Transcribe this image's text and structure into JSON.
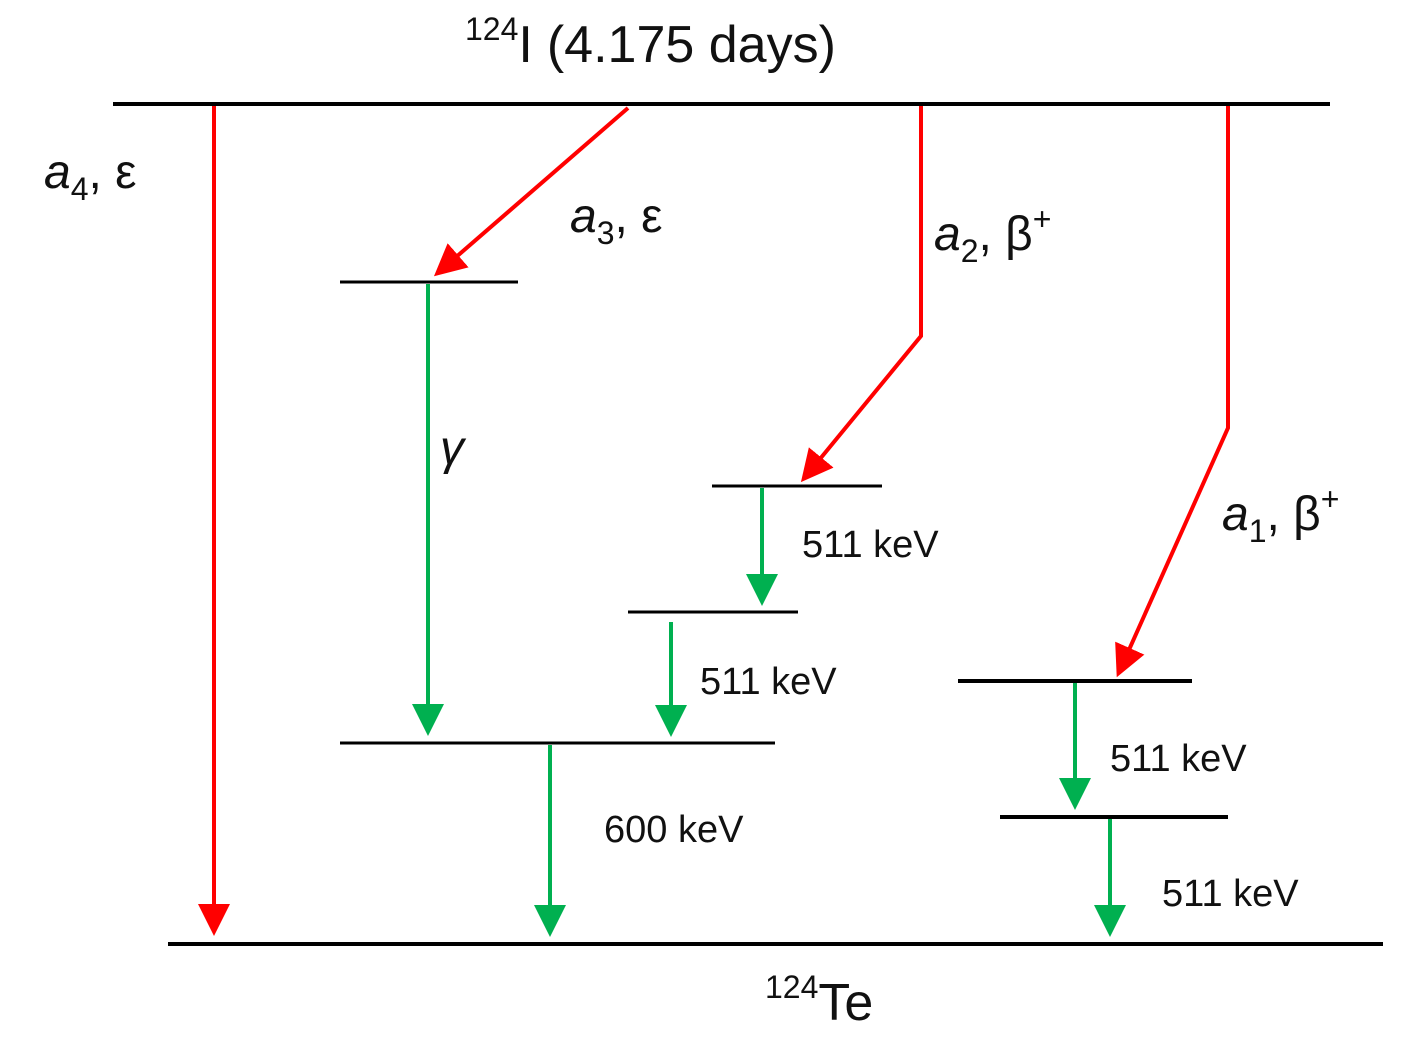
{
  "colors": {
    "level_line": "#000000",
    "decay_arrow": "#ff0000",
    "gamma_arrow": "#00b050",
    "text": "#111111"
  },
  "parent": {
    "mass_number": "124",
    "symbol": "I",
    "half_life": "(4.175 days)"
  },
  "daughter": {
    "mass_number": "124",
    "symbol": "Te"
  },
  "branches": [
    {
      "coef": "a",
      "index": "4",
      "mode": "ε",
      "mode_sup": ""
    },
    {
      "coef": "a",
      "index": "3",
      "mode": "ε",
      "mode_sup": ""
    },
    {
      "coef": "a",
      "index": "2",
      "mode": "β",
      "mode_sup": "+"
    },
    {
      "coef": "a",
      "index": "1",
      "mode": "β",
      "mode_sup": "+"
    }
  ],
  "gamma_symbol": "γ",
  "energies": [
    "511 keV",
    "511 keV",
    "600 keV",
    "511 keV",
    "511 keV"
  ]
}
